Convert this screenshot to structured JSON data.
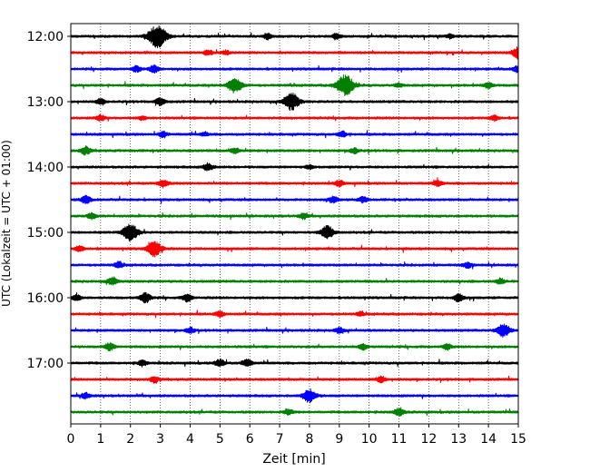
{
  "chart_data": {
    "type": "line",
    "title": "",
    "xlabel": "Zeit  [min]",
    "ylabel": "UTC (Lokalzeit = UTC + 01:00)",
    "xlim": [
      0,
      15
    ],
    "x_ticks": [
      0,
      1,
      2,
      3,
      4,
      5,
      6,
      7,
      8,
      9,
      10,
      11,
      12,
      13,
      14,
      15
    ],
    "grid": "vertical-dotted",
    "trace_colors": [
      "#000000",
      "#ff0000",
      "#0000ff",
      "#008000"
    ],
    "y_ticks": [
      {
        "label": "12:00",
        "trace_index": 0
      },
      {
        "label": "13:00",
        "trace_index": 4
      },
      {
        "label": "14:00",
        "trace_index": 8
      },
      {
        "label": "15:00",
        "trace_index": 12
      },
      {
        "label": "16:00",
        "trace_index": 16
      },
      {
        "label": "17:00",
        "trace_index": 20
      }
    ],
    "series": [
      {
        "start": "12:00",
        "events": [
          [
            2.9,
            12
          ],
          [
            6.6,
            3
          ],
          [
            8.9,
            3
          ],
          [
            12.7,
            2
          ]
        ]
      },
      {
        "start": "12:15",
        "events": [
          [
            4.6,
            3
          ],
          [
            5.2,
            2
          ],
          [
            15.0,
            6
          ]
        ]
      },
      {
        "start": "12:30",
        "events": [
          [
            2.2,
            3
          ],
          [
            2.8,
            4
          ],
          [
            15.0,
            4
          ]
        ]
      },
      {
        "start": "12:45",
        "events": [
          [
            5.5,
            8
          ],
          [
            9.2,
            11
          ],
          [
            11.0,
            2
          ],
          [
            14.0,
            3
          ]
        ]
      },
      {
        "start": "13:00",
        "events": [
          [
            1.0,
            3
          ],
          [
            3.0,
            4
          ],
          [
            7.4,
            9
          ]
        ]
      },
      {
        "start": "13:15",
        "events": [
          [
            1.0,
            3
          ],
          [
            2.4,
            2
          ],
          [
            14.2,
            3
          ]
        ]
      },
      {
        "start": "13:30",
        "events": [
          [
            3.1,
            3
          ],
          [
            4.5,
            2
          ],
          [
            9.1,
            3
          ]
        ]
      },
      {
        "start": "13:45",
        "events": [
          [
            0.5,
            4
          ],
          [
            5.5,
            3
          ],
          [
            9.5,
            3
          ]
        ]
      },
      {
        "start": "14:00",
        "events": [
          [
            4.6,
            4
          ],
          [
            8.0,
            2
          ]
        ]
      },
      {
        "start": "14:15",
        "events": [
          [
            3.1,
            4
          ],
          [
            9.0,
            3
          ],
          [
            12.3,
            3
          ]
        ]
      },
      {
        "start": "14:30",
        "events": [
          [
            0.5,
            4
          ],
          [
            8.8,
            3
          ],
          [
            9.8,
            3
          ]
        ]
      },
      {
        "start": "14:45",
        "events": [
          [
            0.7,
            3
          ],
          [
            7.8,
            3
          ]
        ]
      },
      {
        "start": "15:00",
        "events": [
          [
            2.0,
            9
          ],
          [
            8.6,
            7
          ]
        ]
      },
      {
        "start": "15:15",
        "events": [
          [
            0.3,
            3
          ],
          [
            2.8,
            8
          ]
        ]
      },
      {
        "start": "15:30",
        "events": [
          [
            1.6,
            3
          ],
          [
            13.3,
            3
          ]
        ]
      },
      {
        "start": "15:45",
        "events": [
          [
            1.4,
            4
          ],
          [
            14.4,
            3
          ]
        ]
      },
      {
        "start": "16:00",
        "events": [
          [
            0.2,
            3
          ],
          [
            2.5,
            5
          ],
          [
            3.9,
            4
          ],
          [
            13.0,
            4
          ]
        ]
      },
      {
        "start": "16:15",
        "events": [
          [
            5.0,
            3
          ],
          [
            9.7,
            2
          ]
        ]
      },
      {
        "start": "16:30",
        "events": [
          [
            4.0,
            3
          ],
          [
            9.0,
            3
          ],
          [
            14.5,
            7
          ]
        ]
      },
      {
        "start": "16:45",
        "events": [
          [
            1.3,
            4
          ],
          [
            9.8,
            3
          ],
          [
            12.6,
            3
          ]
        ]
      },
      {
        "start": "17:00",
        "events": [
          [
            2.4,
            3
          ],
          [
            5.0,
            4
          ],
          [
            5.9,
            4
          ]
        ]
      },
      {
        "start": "17:15",
        "events": [
          [
            2.8,
            3
          ],
          [
            10.4,
            3
          ]
        ]
      },
      {
        "start": "17:30",
        "events": [
          [
            0.5,
            3
          ],
          [
            8.0,
            7
          ]
        ]
      },
      {
        "start": "17:45",
        "events": [
          [
            7.3,
            3
          ],
          [
            11.0,
            4
          ]
        ]
      }
    ]
  }
}
